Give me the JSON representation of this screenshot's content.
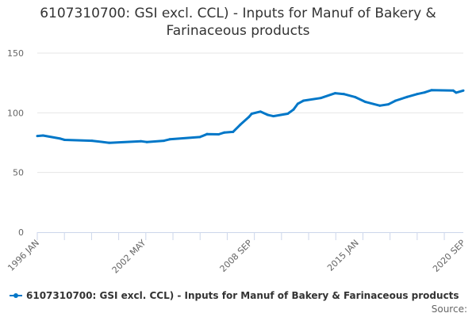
{
  "chart_data": {
    "type": "line",
    "title": "6107310700: GSI excl. CCL) - Inputs for Manuf of Bakery & Farinaceous products",
    "xlabel": "",
    "ylabel": "",
    "ylim": [
      0,
      150
    ],
    "yticks": [
      0,
      50,
      100,
      150
    ],
    "xlim": [
      "1996-01",
      "2020-09"
    ],
    "xtick_labels": [
      "1996 JAN",
      "2002 MAY",
      "2008 SEP",
      "2015 JAN",
      "2020 SEP"
    ],
    "grid": true,
    "legend_position": "bottom-left",
    "color": "#0077c8",
    "series": [
      {
        "name": "6107310700: GSI excl. CCL) - Inputs for Manuf of Bakery & Farinaceous products",
        "points": [
          [
            "1996-01",
            80.6
          ],
          [
            "1996-05",
            81
          ],
          [
            "1997-05",
            78.4
          ],
          [
            "1997-08",
            77.3
          ],
          [
            "1999-03",
            76.6
          ],
          [
            "2000-03",
            74.9
          ],
          [
            "2002-01",
            76.2
          ],
          [
            "2002-05",
            75.5
          ],
          [
            "2003-05",
            76.6
          ],
          [
            "2003-09",
            77.8
          ],
          [
            "2005-06",
            79.7
          ],
          [
            "2005-11",
            82.2
          ],
          [
            "2006-07",
            82
          ],
          [
            "2006-11",
            83.5
          ],
          [
            "2007-05",
            84
          ],
          [
            "2007-10",
            90
          ],
          [
            "2008-04",
            96.5
          ],
          [
            "2008-06",
            99.2
          ],
          [
            "2008-12",
            101
          ],
          [
            "2009-05",
            98.3
          ],
          [
            "2009-09",
            97.2
          ],
          [
            "2010-07",
            99.2
          ],
          [
            "2010-11",
            102.7
          ],
          [
            "2011-02",
            107.6
          ],
          [
            "2011-06",
            110.2
          ],
          [
            "2012-06",
            112.4
          ],
          [
            "2013-04",
            116.4
          ],
          [
            "2013-10",
            115.7
          ],
          [
            "2014-06",
            113.1
          ],
          [
            "2015-01",
            109.1
          ],
          [
            "2015-11",
            106
          ],
          [
            "2016-05",
            107.1
          ],
          [
            "2016-10",
            110.2
          ],
          [
            "2017-06",
            113.3
          ],
          [
            "2018-01",
            115.7
          ],
          [
            "2018-06",
            117
          ],
          [
            "2018-11",
            119
          ],
          [
            "2020-02",
            118.6
          ],
          [
            "2020-04",
            116.9
          ],
          [
            "2020-09",
            118.6
          ]
        ]
      }
    ]
  },
  "source_label": "Source:"
}
